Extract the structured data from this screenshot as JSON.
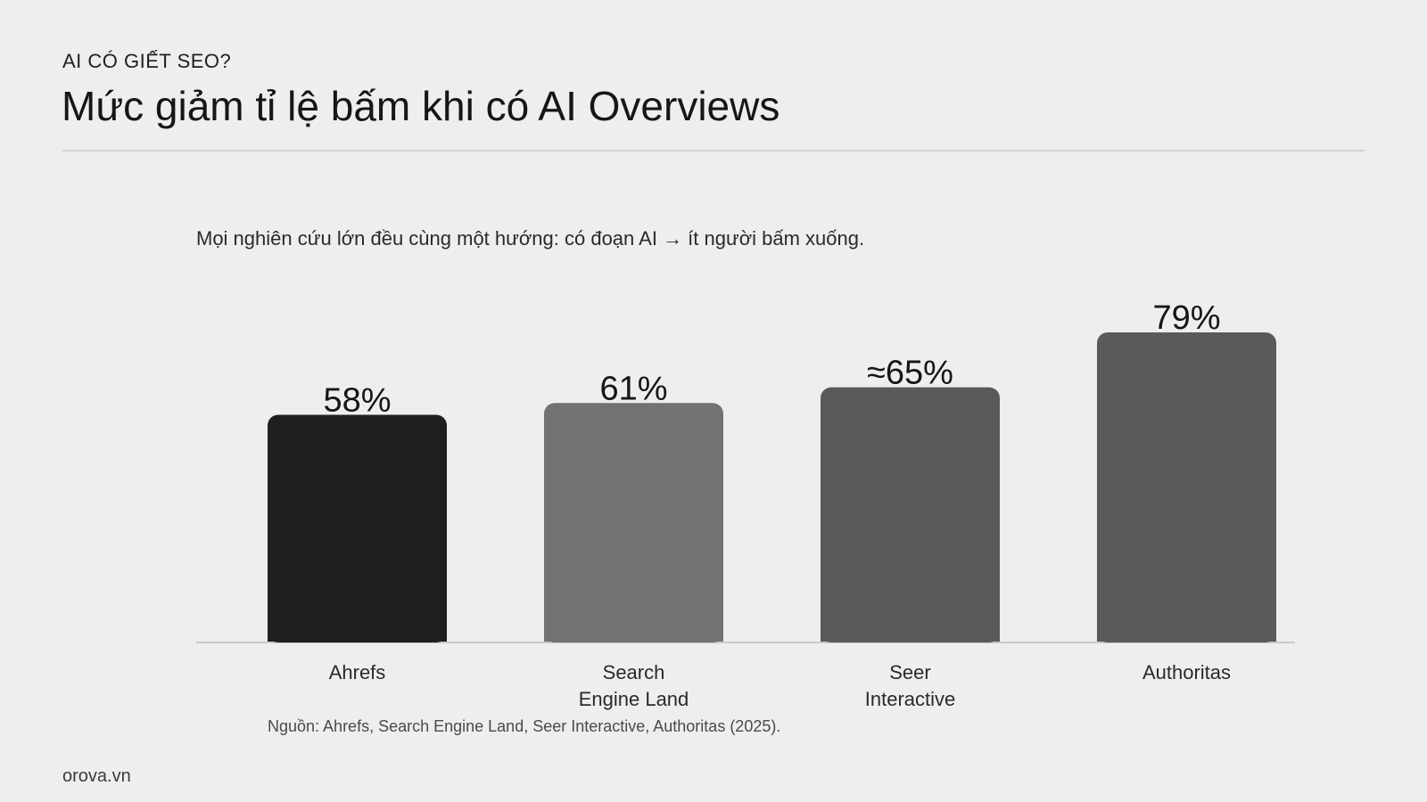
{
  "header": {
    "eyebrow": "AI CÓ GIẾT SEO?",
    "title": "Mức giảm tỉ lệ bấm khi có AI Overviews"
  },
  "subtitle": "Mọi nghiên cứu lớn đều cùng một hướng: có đoạn AI → ít người bấm xuống.",
  "source": "Nguồn: Ahrefs, Search Engine Land, Seer Interactive, Authoritas (2025).",
  "brand": "orova.vn",
  "chart_data": {
    "type": "bar",
    "title": "",
    "xlabel": "",
    "ylabel": "",
    "grid": false,
    "ylim": [
      0,
      79
    ],
    "categories": [
      "Ahrefs",
      "Search Engine Land",
      "Seer Interactive",
      "Authoritas"
    ],
    "category_lines": [
      [
        "Ahrefs"
      ],
      [
        "Search",
        "Engine Land"
      ],
      [
        "Seer",
        "Interactive"
      ],
      [
        "Authoritas"
      ]
    ],
    "values": [
      58,
      61,
      65,
      79
    ],
    "value_labels": [
      "58%",
      "61%",
      "≈65%",
      "79%"
    ],
    "colors": [
      "#1f1f1f",
      "#727272",
      "#5a5a5a",
      "#5a5a5a"
    ]
  }
}
